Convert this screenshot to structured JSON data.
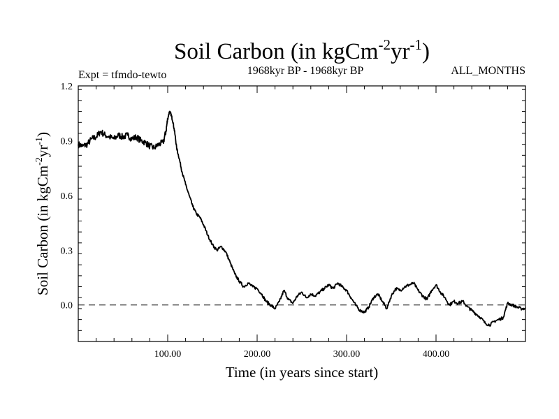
{
  "chart_data": {
    "type": "line",
    "title_main": "Soil Carbon (in kgCm",
    "title_sup1": "-2",
    "title_mid": "yr",
    "title_sup2": "-1",
    "title_close": ")",
    "subtitle_left": "Expt = tfmdo-tewto",
    "subtitle_center": "1968kyr BP - 1968kyr BP",
    "subtitle_right": "ALL_MONTHS",
    "ylabel_main": "Soil Carbon (in kgCm",
    "ylabel_sup1": "-2",
    "ylabel_mid": "yr",
    "ylabel_sup2": "-1",
    "ylabel_close": ")",
    "xlabel": "Time (in years since start)",
    "xlim": [
      0,
      500
    ],
    "ylim": [
      -0.2,
      1.2
    ],
    "x_ticks": [
      100,
      200,
      300,
      400
    ],
    "x_tick_labels": [
      "100.00",
      "200.00",
      "300.00",
      "400.00"
    ],
    "y_ticks": [
      0.0,
      0.3,
      0.6,
      0.9,
      1.2
    ],
    "y_tick_labels": [
      "0.0",
      "0.3",
      "0.6",
      "0.9",
      "1.2"
    ],
    "zero_line": 0.0,
    "series": [
      {
        "name": "Soil Carbon",
        "x": [
          0,
          5,
          10,
          15,
          20,
          25,
          30,
          35,
          40,
          45,
          50,
          55,
          60,
          65,
          70,
          75,
          80,
          85,
          90,
          95,
          98,
          100,
          102,
          104,
          106,
          108,
          110,
          113,
          116,
          120,
          124,
          128,
          132,
          136,
          140,
          145,
          150,
          155,
          160,
          165,
          170,
          175,
          180,
          185,
          190,
          195,
          200,
          205,
          210,
          215,
          220,
          225,
          230,
          235,
          240,
          245,
          250,
          255,
          260,
          265,
          270,
          275,
          280,
          285,
          290,
          295,
          300,
          305,
          310,
          315,
          320,
          325,
          330,
          335,
          340,
          345,
          350,
          355,
          360,
          365,
          370,
          375,
          380,
          385,
          390,
          395,
          400,
          405,
          410,
          415,
          420,
          425,
          430,
          435,
          440,
          445,
          450,
          455,
          460,
          465,
          470,
          475,
          480,
          485,
          490,
          495,
          500
        ],
        "values": [
          0.88,
          0.87,
          0.88,
          0.91,
          0.92,
          0.95,
          0.93,
          0.92,
          0.91,
          0.93,
          0.92,
          0.93,
          0.91,
          0.92,
          0.9,
          0.89,
          0.87,
          0.86,
          0.88,
          0.89,
          0.95,
          1.02,
          1.06,
          1.04,
          1.0,
          0.94,
          0.86,
          0.8,
          0.73,
          0.66,
          0.6,
          0.54,
          0.5,
          0.48,
          0.44,
          0.38,
          0.33,
          0.3,
          0.32,
          0.29,
          0.23,
          0.17,
          0.13,
          0.1,
          0.12,
          0.1,
          0.09,
          0.06,
          0.02,
          0.0,
          -0.02,
          0.02,
          0.08,
          0.03,
          0.01,
          0.05,
          0.07,
          0.04,
          0.06,
          0.05,
          0.07,
          0.09,
          0.11,
          0.09,
          0.12,
          0.1,
          0.08,
          0.04,
          0.0,
          -0.03,
          -0.04,
          -0.01,
          0.04,
          0.06,
          0.02,
          -0.02,
          0.05,
          0.09,
          0.08,
          0.1,
          0.11,
          0.12,
          0.08,
          0.05,
          0.03,
          0.08,
          0.11,
          0.07,
          0.04,
          0.0,
          0.02,
          0.01,
          0.02,
          -0.01,
          -0.03,
          -0.05,
          -0.07,
          -0.1,
          -0.11,
          -0.09,
          -0.08,
          -0.07,
          0.01,
          0.0,
          -0.01,
          -0.02,
          -0.02
        ]
      }
    ]
  }
}
